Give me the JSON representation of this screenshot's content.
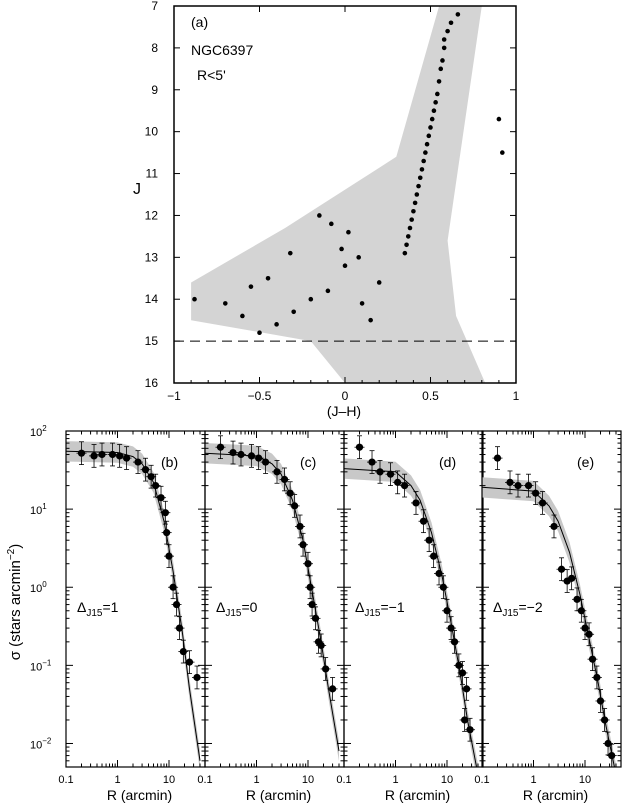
{
  "chart_data": [
    {
      "type": "scatter",
      "panel_label": "(a)",
      "annotation_lines": [
        "NGC6397",
        "R<5'"
      ],
      "xlabel": "(J–H)",
      "ylabel": "J",
      "xlim": [
        -1,
        1
      ],
      "ylim": [
        16,
        7
      ],
      "y_inverted": true,
      "xticks": [
        -1,
        -0.5,
        0,
        0.5,
        1
      ],
      "xtick_labels": [
        "−1",
        "−0.5",
        "0",
        "0.5",
        "1"
      ],
      "yticks": [
        7,
        8,
        9,
        10,
        11,
        12,
        13,
        14,
        15,
        16
      ],
      "ytick_labels": [
        "7",
        "8",
        "9",
        "10",
        "11",
        "12",
        "13",
        "14",
        "15",
        "16"
      ],
      "dashed_line_y": 15,
      "band_fill_color": "#d4d4d4",
      "band_polygon": [
        [
          -0.9,
          13.6
        ],
        [
          -0.35,
          12.3
        ],
        [
          0.3,
          10.6
        ],
        [
          0.55,
          7.0
        ],
        [
          0.8,
          7.0
        ],
        [
          0.6,
          12.6
        ],
        [
          0.65,
          14.4
        ],
        [
          0.82,
          16.0
        ],
        [
          0.0,
          16.0
        ],
        [
          -0.2,
          15.0
        ],
        [
          -0.9,
          14.5
        ]
      ],
      "points": [
        [
          0.66,
          7.2
        ],
        [
          0.62,
          7.4
        ],
        [
          0.6,
          7.6
        ],
        [
          0.58,
          7.8
        ],
        [
          0.58,
          8.0
        ],
        [
          0.57,
          8.3
        ],
        [
          0.56,
          8.5
        ],
        [
          0.55,
          8.8
        ],
        [
          0.54,
          9.1
        ],
        [
          0.53,
          9.3
        ],
        [
          0.52,
          9.5
        ],
        [
          0.51,
          9.7
        ],
        [
          0.5,
          9.9
        ],
        [
          0.49,
          10.1
        ],
        [
          0.48,
          10.3
        ],
        [
          0.47,
          10.5
        ],
        [
          0.46,
          10.7
        ],
        [
          0.45,
          10.9
        ],
        [
          0.44,
          11.1
        ],
        [
          0.43,
          11.3
        ],
        [
          0.42,
          11.5
        ],
        [
          0.41,
          11.7
        ],
        [
          0.4,
          11.9
        ],
        [
          0.39,
          12.1
        ],
        [
          0.38,
          12.3
        ],
        [
          0.37,
          12.5
        ],
        [
          0.36,
          12.7
        ],
        [
          0.35,
          12.9
        ],
        [
          0.9,
          9.7
        ],
        [
          0.92,
          10.5
        ],
        [
          -0.15,
          12.0
        ],
        [
          -0.08,
          12.2
        ],
        [
          0.02,
          12.4
        ],
        [
          -0.02,
          12.8
        ],
        [
          0.08,
          13.0
        ],
        [
          0.0,
          13.2
        ],
        [
          -0.32,
          12.9
        ],
        [
          -0.45,
          13.5
        ],
        [
          -0.55,
          13.7
        ],
        [
          -0.7,
          14.1
        ],
        [
          -0.88,
          14.0
        ],
        [
          -0.6,
          14.4
        ],
        [
          -0.4,
          14.6
        ],
        [
          -0.5,
          14.8
        ],
        [
          -0.3,
          14.3
        ],
        [
          -0.2,
          14.0
        ],
        [
          -0.1,
          13.8
        ],
        [
          0.1,
          14.1
        ],
        [
          0.2,
          13.6
        ],
        [
          0.15,
          14.5
        ]
      ]
    },
    {
      "type": "scatter",
      "panel_label": "(b)",
      "annotation": "ΔJ15=1",
      "annotation_base": "Δ",
      "annotation_sub": "J15",
      "annotation_value": "=1",
      "xscale": "log",
      "yscale": "log",
      "xlim": [
        0.1,
        50
      ],
      "ylim": [
        0.005,
        100
      ],
      "xlabel": "R (arcmin)",
      "xticks": [
        0.1,
        1,
        10
      ],
      "xtick_labels": [
        "0.1",
        "1",
        "10"
      ],
      "points": [
        [
          0.2,
          52
        ],
        [
          0.35,
          48
        ],
        [
          0.5,
          50
        ],
        [
          0.8,
          50
        ],
        [
          1.1,
          48
        ],
        [
          1.5,
          45
        ],
        [
          2.5,
          40
        ],
        [
          3.5,
          32
        ],
        [
          4.5,
          26
        ],
        [
          5.5,
          20
        ],
        [
          7,
          14
        ],
        [
          8.5,
          9
        ],
        [
          9,
          5
        ],
        [
          10,
          2.5
        ],
        [
          12,
          1.0
        ],
        [
          14,
          0.6
        ],
        [
          16,
          0.3
        ],
        [
          19,
          0.15
        ],
        [
          25,
          0.11
        ],
        [
          35,
          0.07
        ]
      ],
      "model_curve": [
        [
          0.1,
          55
        ],
        [
          1,
          53
        ],
        [
          2,
          47
        ],
        [
          3,
          38
        ],
        [
          5,
          22
        ],
        [
          8,
          7
        ],
        [
          12,
          1.6
        ],
        [
          18,
          0.28
        ],
        [
          25,
          0.05
        ],
        [
          40,
          0.006
        ]
      ]
    },
    {
      "type": "scatter",
      "panel_label": "(c)",
      "annotation": "ΔJ15=0",
      "annotation_base": "Δ",
      "annotation_sub": "J15",
      "annotation_value": "=0",
      "xscale": "log",
      "yscale": "log",
      "xlim": [
        0.1,
        50
      ],
      "ylim": [
        0.005,
        100
      ],
      "xlabel": "R (arcmin)",
      "xticks": [
        0.1,
        1,
        10
      ],
      "xtick_labels": [
        "0.1",
        "1",
        "10"
      ],
      "points": [
        [
          0.2,
          62
        ],
        [
          0.35,
          53
        ],
        [
          0.5,
          50
        ],
        [
          0.8,
          48
        ],
        [
          1.1,
          45
        ],
        [
          1.5,
          40
        ],
        [
          2.5,
          30
        ],
        [
          3.5,
          24
        ],
        [
          4.5,
          16
        ],
        [
          5.5,
          11
        ],
        [
          7,
          6
        ],
        [
          8,
          3.5
        ],
        [
          10,
          2.0
        ],
        [
          11,
          1.0
        ],
        [
          12,
          0.6
        ],
        [
          14,
          0.4
        ],
        [
          16,
          0.2
        ],
        [
          18,
          0.18
        ],
        [
          22,
          0.09
        ],
        [
          30,
          0.05
        ]
      ],
      "model_curve": [
        [
          0.1,
          52
        ],
        [
          1,
          48
        ],
        [
          2,
          38
        ],
        [
          3,
          28
        ],
        [
          5,
          13
        ],
        [
          8,
          4
        ],
        [
          12,
          0.9
        ],
        [
          18,
          0.2
        ],
        [
          25,
          0.05
        ],
        [
          40,
          0.008
        ]
      ]
    },
    {
      "type": "scatter",
      "panel_label": "(d)",
      "annotation": "ΔJ15=−1",
      "annotation_base": "Δ",
      "annotation_sub": "J15",
      "annotation_value": "=−1",
      "xscale": "log",
      "yscale": "log",
      "xlim": [
        0.1,
        50
      ],
      "ylim": [
        0.005,
        100
      ],
      "xlabel": "R (arcmin)",
      "xticks": [
        0.1,
        1,
        10
      ],
      "xtick_labels": [
        "0.1",
        "1",
        "10"
      ],
      "points": [
        [
          0.2,
          62
        ],
        [
          0.35,
          40
        ],
        [
          0.5,
          30
        ],
        [
          0.8,
          28
        ],
        [
          1.1,
          22
        ],
        [
          1.5,
          20
        ],
        [
          2.5,
          12
        ],
        [
          3.5,
          7
        ],
        [
          4.5,
          4
        ],
        [
          5.5,
          2.5
        ],
        [
          7,
          1.5
        ],
        [
          8.5,
          1.0
        ],
        [
          10,
          0.5
        ],
        [
          12,
          0.3
        ],
        [
          14,
          0.2
        ],
        [
          17,
          0.1
        ],
        [
          20,
          0.08
        ],
        [
          24,
          0.05
        ],
        [
          28,
          0.015
        ],
        [
          22,
          0.02
        ]
      ],
      "model_curve": [
        [
          0.1,
          33
        ],
        [
          1,
          30
        ],
        [
          2,
          20
        ],
        [
          3,
          13
        ],
        [
          5,
          5
        ],
        [
          8,
          1.4
        ],
        [
          12,
          0.35
        ],
        [
          18,
          0.08
        ],
        [
          25,
          0.02
        ],
        [
          40,
          0.004
        ]
      ]
    },
    {
      "type": "scatter",
      "panel_label": "(e)",
      "annotation": "ΔJ15=−2",
      "annotation_base": "Δ",
      "annotation_sub": "J15",
      "annotation_value": "=−2",
      "xscale": "log",
      "yscale": "log",
      "xlim": [
        0.1,
        50
      ],
      "ylim": [
        0.005,
        100
      ],
      "xlabel": "R (arcmin)",
      "xticks": [
        0.1,
        1,
        10
      ],
      "xtick_labels": [
        "0.1",
        "1",
        "10"
      ],
      "points": [
        [
          0.2,
          45
        ],
        [
          0.35,
          22
        ],
        [
          0.5,
          20
        ],
        [
          0.8,
          20
        ],
        [
          1.1,
          16
        ],
        [
          1.5,
          12
        ],
        [
          2.5,
          6
        ],
        [
          3.5,
          1.7
        ],
        [
          4.5,
          1.2
        ],
        [
          5.5,
          1.3
        ],
        [
          7,
          0.7
        ],
        [
          8.5,
          0.5
        ],
        [
          10,
          0.3
        ],
        [
          12,
          0.25
        ],
        [
          14,
          0.12
        ],
        [
          17,
          0.07
        ],
        [
          20,
          0.035
        ],
        [
          24,
          0.02
        ],
        [
          28,
          0.01
        ],
        [
          33,
          0.007
        ]
      ],
      "model_curve": [
        [
          0.1,
          19
        ],
        [
          1,
          17
        ],
        [
          2,
          11
        ],
        [
          3,
          7
        ],
        [
          5,
          2.8
        ],
        [
          8,
          0.8
        ],
        [
          12,
          0.22
        ],
        [
          18,
          0.06
        ],
        [
          25,
          0.018
        ],
        [
          40,
          0.004
        ]
      ]
    }
  ],
  "shared": {
    "ylabel": "σ (stars arcmin⁻²)",
    "ylabel_base": "σ (stars arcmin",
    "ylabel_sup": "−2",
    "ylabel_close": ")",
    "ytick_labels": [
      {
        "value": 100,
        "base": "10",
        "exp": "2"
      },
      {
        "value": 10,
        "base": "10",
        "exp": "1"
      },
      {
        "value": 1,
        "base": "10",
        "exp": "0"
      },
      {
        "value": 0.1,
        "base": "10",
        "exp": "−1"
      },
      {
        "value": 0.01,
        "base": "10",
        "exp": "−2"
      }
    ],
    "band_fill_color": "#c8c8c8"
  }
}
